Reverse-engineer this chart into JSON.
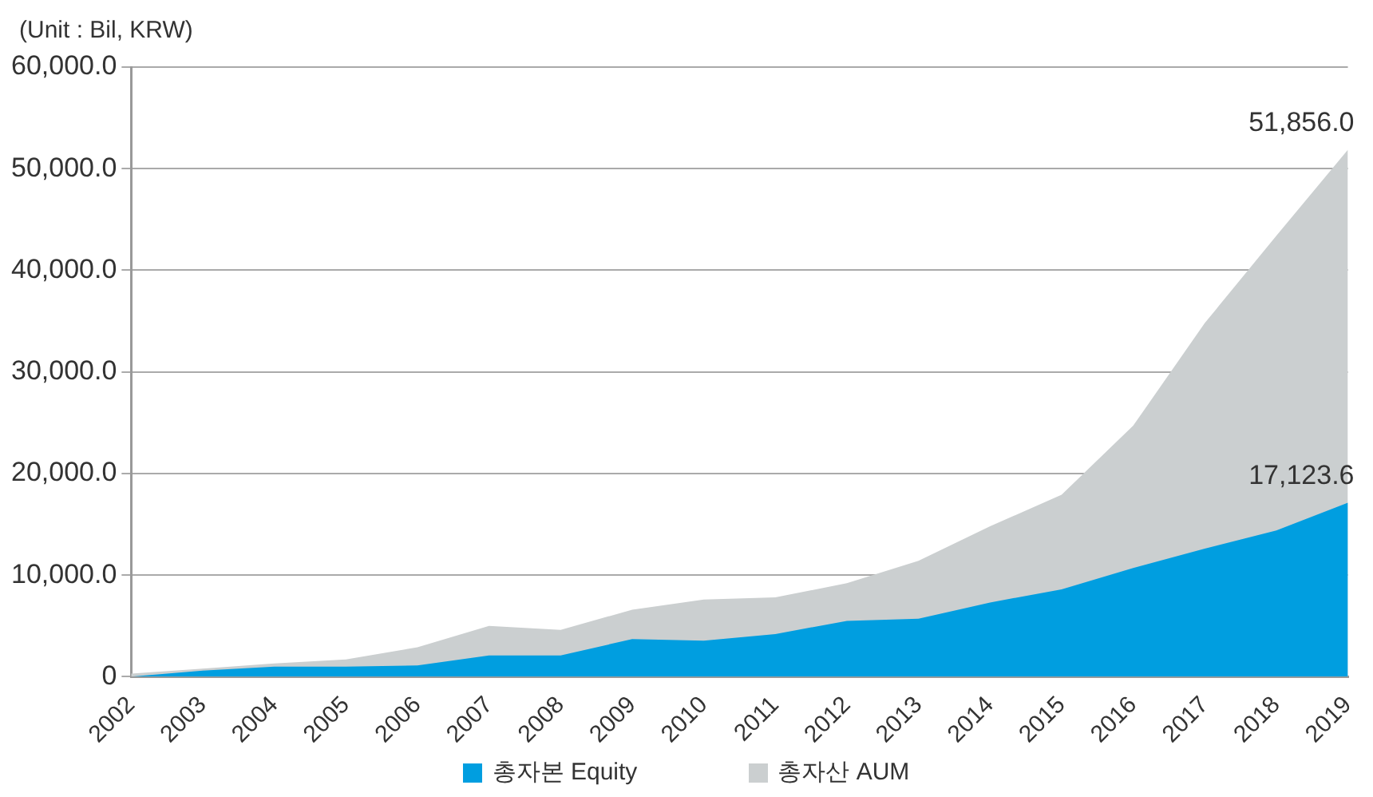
{
  "chart_data": {
    "type": "area",
    "ylabel": "(Unit : Bil, KRW)",
    "categories": [
      "2002",
      "2003",
      "2004",
      "2005",
      "2006",
      "2007",
      "2008",
      "2009",
      "2010",
      "2011",
      "2012",
      "2013",
      "2014",
      "2015",
      "2016",
      "2017",
      "2018",
      "2019"
    ],
    "series": [
      {
        "name": "총자본 Equity",
        "color": "#009ee0",
        "values": [
          0,
          600,
          1000,
          1000,
          1100,
          2100,
          2100,
          3700,
          3550,
          4200,
          5500,
          5700,
          7300,
          8600,
          10700,
          12600,
          14400,
          17123.6
        ],
        "value_labels": [
          null,
          null,
          null,
          null,
          null,
          null,
          null,
          null,
          null,
          null,
          null,
          null,
          null,
          null,
          null,
          null,
          null,
          "17,123.6"
        ]
      },
      {
        "name": "총자산 AUM",
        "color": "#cbcfd0",
        "values": [
          300,
          800,
          1300,
          1700,
          2900,
          5000,
          4600,
          6600,
          7600,
          7800,
          9200,
          11400,
          14800,
          17900,
          24700,
          34800,
          43400,
          51856.0
        ],
        "value_labels": [
          null,
          null,
          null,
          null,
          null,
          null,
          null,
          null,
          null,
          null,
          null,
          null,
          null,
          null,
          null,
          null,
          null,
          "51,856.0"
        ]
      }
    ],
    "ylim": [
      0,
      60000
    ],
    "yticks": [
      0,
      {
        "value": 10000,
        "label": "10,000.0"
      },
      {
        "value": 20000,
        "label": "20,000.0"
      },
      {
        "value": 30000,
        "label": "30,000.0"
      },
      {
        "value": 40000,
        "label": "40,000.0"
      },
      {
        "value": 50000,
        "label": "50,000.0"
      },
      {
        "value": 60000,
        "label": "60,000.0"
      }
    ],
    "grid": "y",
    "legend": "bottom"
  }
}
